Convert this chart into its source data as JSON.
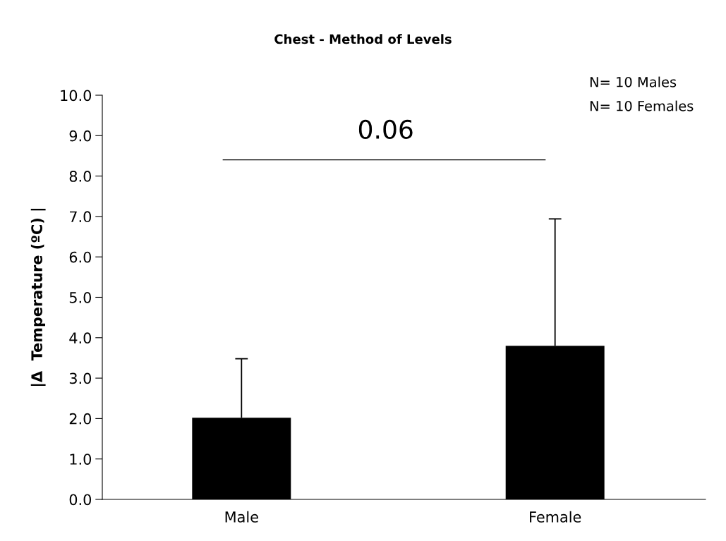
{
  "chart_data": {
    "type": "bar",
    "title": "Chest - Method of Levels",
    "ylabel": "|Δ  Temperature (ºC) |",
    "categories": [
      "Male",
      "Female"
    ],
    "values": [
      2.02,
      3.8
    ],
    "color": "#000000",
    "errors": [
      [
        2.02,
        3.48
      ],
      [
        3.8,
        6.94
      ]
    ],
    "ylim": [
      0,
      10
    ],
    "yticks": [
      {
        "value": 0,
        "label": "0.0"
      },
      {
        "value": 1,
        "label": "1.0"
      },
      {
        "value": 2,
        "label": "2.0"
      },
      {
        "value": 3,
        "label": "3.0"
      },
      {
        "value": 4,
        "label": "4.0"
      },
      {
        "value": 5,
        "label": "5.0"
      },
      {
        "value": 6,
        "label": "6.0"
      },
      {
        "value": 7,
        "label": "7.0"
      },
      {
        "value": 8,
        "label": "8.0"
      },
      {
        "value": 9,
        "label": "9.0"
      },
      {
        "value": 10,
        "label": "10.0"
      }
    ],
    "annotations": [
      "0.06",
      "N= 10 Males",
      "N= 10 Females"
    ],
    "ref_lines": [
      {
        "axis": "y",
        "value": 8.4,
        "color": "#000000"
      }
    ],
    "grid": false
  }
}
